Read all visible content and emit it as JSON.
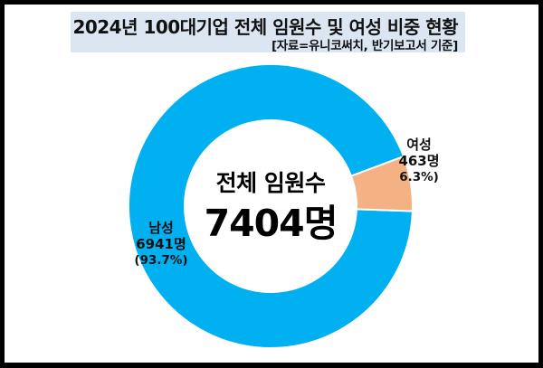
{
  "header": {
    "title": "2024년 100대기업 전체 임원수 및 여성 비중 현황",
    "subtitle": "[자료=유니코써치, 반기보고서 기준]"
  },
  "center": {
    "label": "전체 임원수",
    "value": "7404명"
  },
  "slices": {
    "female": {
      "name": "여성",
      "count": "463명",
      "percent": "6.3%)",
      "color": "#f4b183"
    },
    "male": {
      "name": "남성",
      "count": "6941명",
      "percent": "(93.7%)",
      "color": "#00b0f0"
    }
  },
  "colors": {
    "title_bg": "#dce6f2",
    "frame": "#000000"
  },
  "chart_data": {
    "type": "pie",
    "variant": "donut",
    "title": "2024년 100대기업 전체 임원수 및 여성 비중 현황",
    "subtitle": "[자료=유니코써치, 반기보고서 기준]",
    "center_text": [
      "전체 임원수",
      "7404명"
    ],
    "total": 7404,
    "categories": [
      "여성",
      "남성"
    ],
    "values": [
      463,
      6941
    ],
    "percentages": [
      6.3,
      93.7
    ],
    "colors": [
      "#f4b183",
      "#00b0f0"
    ],
    "data_labels": [
      "여성 463명 6.3%)",
      "남성 6941명 (93.7%)"
    ],
    "legend": "none"
  }
}
